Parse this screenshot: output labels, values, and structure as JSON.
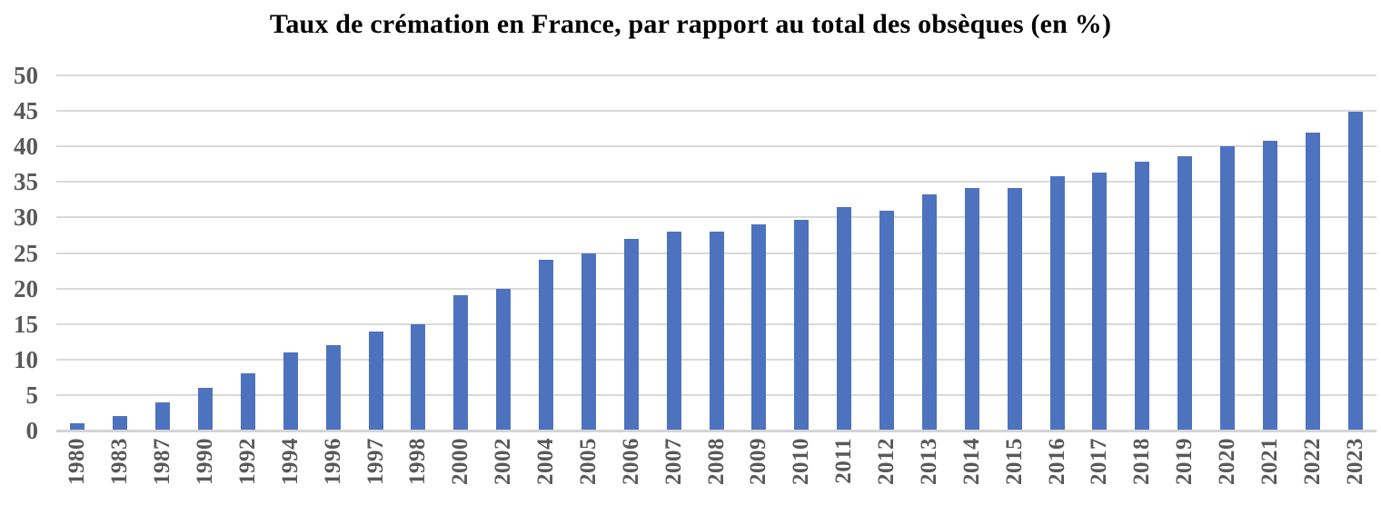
{
  "chart_data": {
    "type": "bar",
    "title": "Taux de crémation en France, par rapport au total des obsèques (en %)",
    "categories": [
      "1980",
      "1983",
      "1987",
      "1990",
      "1992",
      "1994",
      "1996",
      "1997",
      "1998",
      "2000",
      "2002",
      "2004",
      "2005",
      "2006",
      "2007",
      "2008",
      "2009",
      "2010",
      "2011",
      "2012",
      "2013",
      "2014",
      "2015",
      "2016",
      "2017",
      "2018",
      "2019",
      "2020",
      "2021",
      "2022",
      "2023"
    ],
    "values": [
      1,
      2,
      4,
      6,
      8,
      11,
      12,
      14,
      15,
      19,
      20,
      24,
      25,
      27,
      28,
      28,
      29,
      29.7,
      31.4,
      31,
      33.2,
      34.2,
      34.1,
      35.8,
      36.3,
      37.9,
      38.6,
      40,
      40.8,
      42,
      44.9
    ],
    "xlabel": "",
    "ylabel": "",
    "ylim": [
      0,
      50
    ],
    "yticks": [
      50,
      45,
      40,
      35,
      30,
      25,
      20,
      15,
      10,
      5,
      0
    ],
    "grid": true,
    "legend": false,
    "bar_color": "#4D73BE",
    "gridline_color": "#D9D9D9",
    "axis_line_color": "#D4D4D4",
    "tick_label_color": "#595959",
    "title_color": "#000000"
  }
}
